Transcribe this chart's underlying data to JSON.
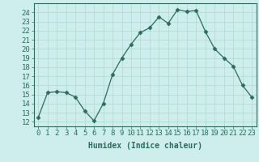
{
  "x": [
    0,
    1,
    2,
    3,
    4,
    5,
    6,
    7,
    8,
    9,
    10,
    11,
    12,
    13,
    14,
    15,
    16,
    17,
    18,
    19,
    20,
    21,
    22,
    23
  ],
  "y": [
    12.5,
    15.2,
    15.3,
    15.2,
    14.7,
    13.2,
    12.1,
    14.0,
    17.2,
    19.0,
    20.5,
    21.8,
    22.3,
    23.5,
    22.8,
    24.3,
    24.1,
    24.2,
    21.9,
    20.0,
    19.0,
    18.1,
    16.0,
    14.7
  ],
  "line_color": "#2d6b5e",
  "marker": "D",
  "marker_size": 2.5,
  "bg_color": "#cdeeed",
  "grid_color": "#b0d8d3",
  "xlabel": "Humidex (Indice chaleur)",
  "ylabel_ticks": [
    12,
    13,
    14,
    15,
    16,
    17,
    18,
    19,
    20,
    21,
    22,
    23,
    24
  ],
  "ylim": [
    11.5,
    25.0
  ],
  "xlim": [
    -0.5,
    23.5
  ],
  "xtick_labels": [
    "0",
    "1",
    "2",
    "3",
    "4",
    "5",
    "6",
    "7",
    "8",
    "9",
    "10",
    "11",
    "12",
    "13",
    "14",
    "15",
    "16",
    "17",
    "18",
    "19",
    "20",
    "21",
    "22",
    "23"
  ],
  "label_fontsize": 7,
  "tick_fontsize": 6.5
}
